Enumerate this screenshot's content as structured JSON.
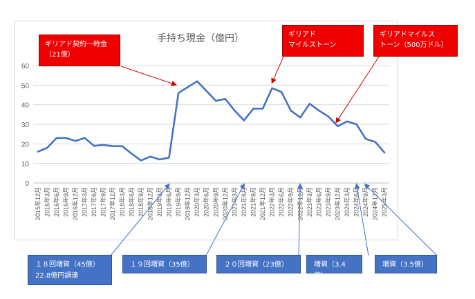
{
  "chart_data": {
    "type": "line",
    "title": "手持ち現金（億円）",
    "xlabel": "",
    "ylabel": "",
    "ylim": [
      0,
      60
    ],
    "yticks": [
      0,
      10,
      20,
      30,
      40,
      50,
      60
    ],
    "grid": true,
    "categories": [
      "2015年12月",
      "2016年3月",
      "2016年6月",
      "2016年9月",
      "2016年12月",
      "2017年3月",
      "2017年6月",
      "2017年9月",
      "2017年12月",
      "2018年3月",
      "2018年6月",
      "2018年9月",
      "2018年12月",
      "2019年3月",
      "2019年6月",
      "2019年9月",
      "2019年12月",
      "2020年3月",
      "2020年6月",
      "2020年9月",
      "2020年12月",
      "2021年3月",
      "2021年6月",
      "2021年9月",
      "2021年12月",
      "2022年3月",
      "2022年6月",
      "2022年9月",
      "2022年12月",
      "2023年3月",
      "2023年6月",
      "2023年9月",
      "2023年12月",
      "2024年3月",
      "2024年6月",
      "2024年9月",
      "2024年12月",
      "2025年3月"
    ],
    "series": [
      {
        "values": [
          16,
          18,
          23,
          23,
          21.5,
          23,
          19,
          19.5,
          18.8,
          18.8,
          15,
          11.5,
          13.5,
          12,
          13,
          46,
          49,
          52,
          47,
          42,
          43,
          37,
          32,
          38,
          38,
          48.5,
          46.5,
          37,
          33.5,
          40.5,
          37,
          34,
          29,
          31.5,
          30,
          22.5,
          21,
          15.5
        ]
      }
    ],
    "color": "#4472c4",
    "annotations_top": [
      {
        "text": "ギリアド契約一時金\n（21億）",
        "target": "2019年9月"
      },
      {
        "text": "ギリアド\nマイルストーン",
        "target": "2022年3月"
      },
      {
        "text": "ギリアドマイルス\nトーン（500万ドル）",
        "target": "2023年12月"
      }
    ],
    "annotations_bottom": [
      {
        "text": "１８回増資（45億）\n22.8億円調達",
        "target": "2019年6月"
      },
      {
        "text": "１９回増資（35億）",
        "target": "2021年6月"
      },
      {
        "text": "２０回増資（23億）",
        "target": "2022年12月"
      },
      {
        "text": "増資（3.4億）",
        "target": "2024年6月"
      },
      {
        "text": "増資（3.5億）",
        "target": "2024年9月"
      }
    ]
  }
}
